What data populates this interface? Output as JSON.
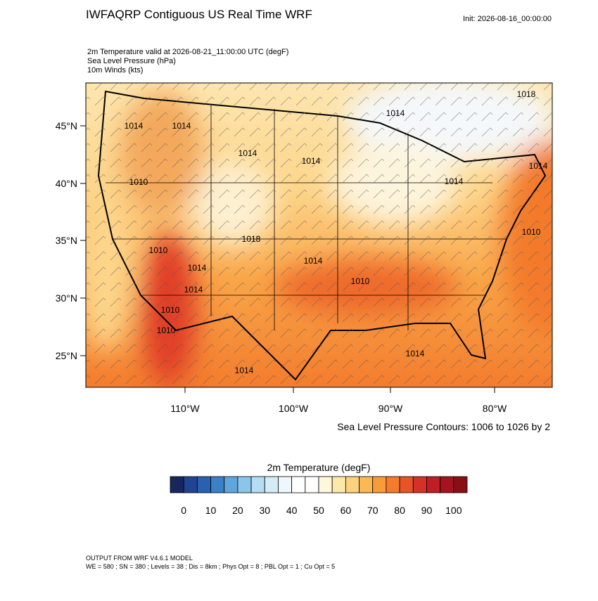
{
  "header": {
    "title": "IWFAQRP Contiguous US Real Time WRF",
    "init": "Init: 2026-08-16_00:00:00",
    "fields": [
      "2m Temperature valid at 2026-08-21_11:00:00 UTC   (degF)",
      "Sea Level Pressure   (hPa)",
      "10m Winds   (kts)"
    ]
  },
  "map": {
    "lat_labels": [
      "45°N",
      "40°N",
      "35°N",
      "30°N",
      "25°N"
    ],
    "lon_labels": [
      "110°W",
      "100°W",
      "90°W",
      "80°W"
    ],
    "contour_labels": [
      "1018",
      "1014",
      "1014",
      "1014",
      "1014",
      "1014",
      "1014",
      "1014",
      "1010",
      "1010",
      "1018",
      "1014",
      "1010",
      "1010",
      "1014",
      "1014",
      "1010",
      "1010",
      "1014",
      "1014"
    ],
    "contour_info": "Sea Level Pressure Contours: 1006 to 1026 by 2"
  },
  "colorbar": {
    "title": "2m Temperature  (degF)",
    "labels": [
      0,
      10,
      20,
      30,
      40,
      50,
      60,
      70,
      80,
      90,
      100
    ],
    "colors": [
      "#182660",
      "#1f4591",
      "#2961b0",
      "#3c80c6",
      "#5fa6dc",
      "#8cc5ea",
      "#b4dcf3",
      "#d4ecf8",
      "#eef7fb",
      "#ffffff",
      "#ffffff",
      "#fff7dc",
      "#fde8ab",
      "#fdd17e",
      "#fbb955",
      "#f89c3b",
      "#f37c2d",
      "#e85328",
      "#d63128",
      "#c01e24",
      "#a4131f",
      "#871016"
    ]
  },
  "footer": {
    "lines": [
      "OUTPUT FROM WRF V4.6.1 MODEL",
      "WE = 580 ; SN = 380 ; Levels = 38 ; Dis = 8km ; Phys Opt = 8 ; PBL Opt = 1 ; Cu Opt = 5"
    ]
  }
}
